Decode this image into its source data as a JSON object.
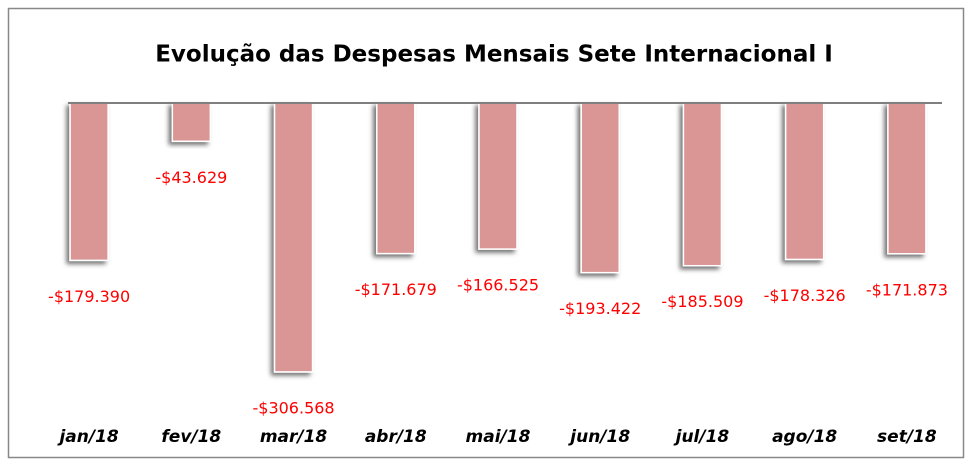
{
  "chart_data": {
    "type": "bar",
    "title": "Evolução das Despesas Mensais Sete Internacional I",
    "categories": [
      "jan/18",
      "fev/18",
      "mar/18",
      "abr/18",
      "mai/18",
      "jun/18",
      "jul/18",
      "ago/18",
      "set/18"
    ],
    "values": [
      -179390,
      -43629,
      -306568,
      -171679,
      -166525,
      -193422,
      -185509,
      -178326,
      -171873
    ],
    "value_labels": [
      "-$179.390",
      "-$43.629",
      "-$306.568",
      "-$171.679",
      "-$166.525",
      "-$193.422",
      "-$185.509",
      "-$178.326",
      "-$171.873"
    ],
    "color": "#d99694",
    "ylim": [
      -350000,
      0
    ]
  }
}
